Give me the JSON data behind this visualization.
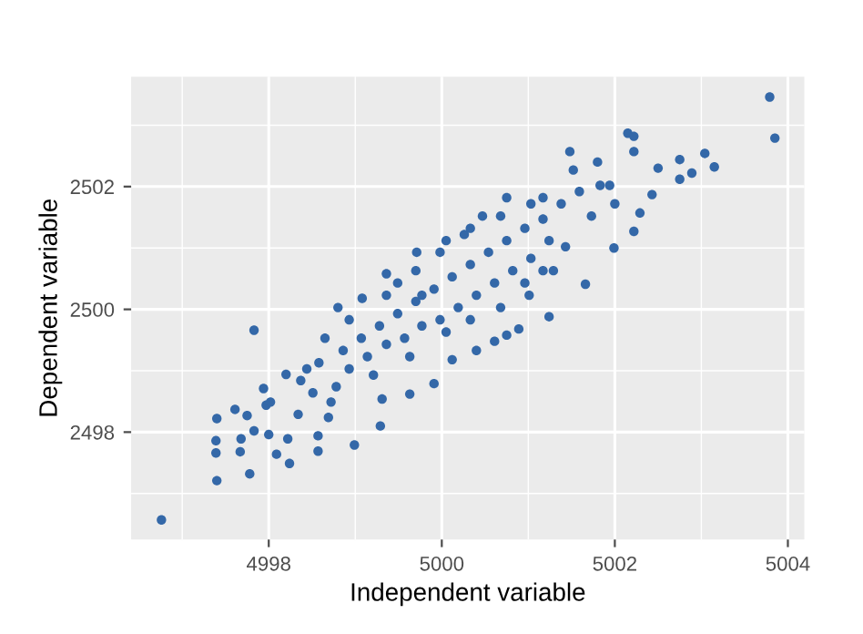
{
  "chart_data": {
    "type": "scatter",
    "xlabel": "Independent variable",
    "ylabel": "Dependent variable",
    "xlim": [
      4996.41,
      5004.19
    ],
    "ylim": [
      2496.25,
      2503.79
    ],
    "xticks": [
      4998,
      5000,
      5002,
      5004
    ],
    "yticks": [
      2498,
      2500,
      2502
    ],
    "grid": true,
    "marker": "circle",
    "series": [
      {
        "color": "#3468a8",
        "x": [
          4996.76,
          5003.79,
          5003.85,
          4997.83,
          4997.4,
          4997.4,
          4997.39,
          4997.39,
          4997.61,
          4997.75,
          4997.68,
          4997.67,
          4997.78,
          4997.83,
          4997.97,
          4998.0,
          4998.09,
          4998.24,
          4998.22,
          4997.94,
          4998.57,
          4998.57,
          4998.99,
          4999.29,
          4998.02,
          4998.2,
          4998.34,
          4998.44,
          4998.69,
          4998.8,
          4999.08,
          4999.36,
          4999.71,
          5000.05,
          5000.26,
          5000.47,
          5000.75,
          5001.17,
          5001.48,
          5001.52,
          5001.8,
          5001.83,
          5002.15,
          5002.22,
          5002.22,
          5002.5,
          5002.75,
          5002.89,
          5003.04,
          5003.15,
          5002.75,
          5002.43,
          5002.22,
          5001.99,
          5001.66,
          5001.24,
          5000.89,
          5000.75,
          5000.61,
          5000.4,
          5000.12,
          4999.91,
          4999.63,
          4999.31,
          4998.78,
          5002.29,
          5002.0,
          5001.43,
          5001.29,
          5001.01,
          4998.37,
          4998.58,
          4998.86,
          4999.07,
          4999.28,
          4999.49,
          4999.7,
          4999.91,
          5000.12,
          5000.33,
          5000.54,
          5000.75,
          5000.96,
          5001.17,
          5001.38,
          4998.93,
          4999.14,
          4999.36,
          4999.57,
          4999.77,
          4999.98,
          5000.19,
          5000.4,
          5000.61,
          5000.82,
          5001.03,
          5001.24,
          4998.51,
          4998.72,
          4999.49,
          4999.7,
          4999.98,
          4999.36,
          4999.77,
          5000.05,
          5000.33,
          5000.68,
          5000.96,
          5001.17,
          4999.63,
          4999.21,
          4998.65,
          4998.93,
          5001.73,
          5001.59,
          5001.94,
          5001.03,
          5000.68,
          5000.33
        ],
        "values": [
          2496.57,
          2503.46,
          2502.79,
          2499.66,
          2497.21,
          2498.22,
          2497.86,
          2497.66,
          2498.37,
          2498.27,
          2497.89,
          2497.68,
          2497.32,
          2498.02,
          2498.44,
          2497.96,
          2497.64,
          2497.49,
          2497.89,
          2498.71,
          2497.94,
          2497.69,
          2497.79,
          2498.1,
          2498.49,
          2498.94,
          2498.29,
          2499.03,
          2498.24,
          2500.03,
          2500.18,
          2500.58,
          2500.93,
          2501.12,
          2501.22,
          2501.52,
          2501.82,
          2501.82,
          2502.57,
          2502.27,
          2502.4,
          2502.02,
          2502.87,
          2502.82,
          2502.57,
          2502.3,
          2502.44,
          2502.22,
          2502.54,
          2502.32,
          2502.12,
          2501.87,
          2501.27,
          2501.0,
          2500.41,
          2499.88,
          2499.68,
          2499.58,
          2499.48,
          2499.33,
          2499.18,
          2498.79,
          2498.62,
          2498.54,
          2498.74,
          2501.57,
          2501.72,
          2501.02,
          2500.63,
          2500.23,
          2498.84,
          2499.13,
          2499.33,
          2499.53,
          2499.73,
          2499.93,
          2500.13,
          2500.33,
          2500.53,
          2500.73,
          2500.93,
          2501.12,
          2501.32,
          2501.47,
          2501.72,
          2499.03,
          2499.23,
          2499.43,
          2499.53,
          2499.73,
          2499.83,
          2500.03,
          2500.23,
          2500.43,
          2500.63,
          2500.83,
          2501.12,
          2498.64,
          2498.49,
          2500.43,
          2500.63,
          2500.93,
          2500.23,
          2500.23,
          2499.63,
          2499.83,
          2500.03,
          2500.43,
          2500.63,
          2499.23,
          2498.93,
          2499.53,
          2499.83,
          2501.52,
          2501.92,
          2502.02,
          2501.72,
          2501.52,
          2501.32
        ]
      }
    ]
  }
}
